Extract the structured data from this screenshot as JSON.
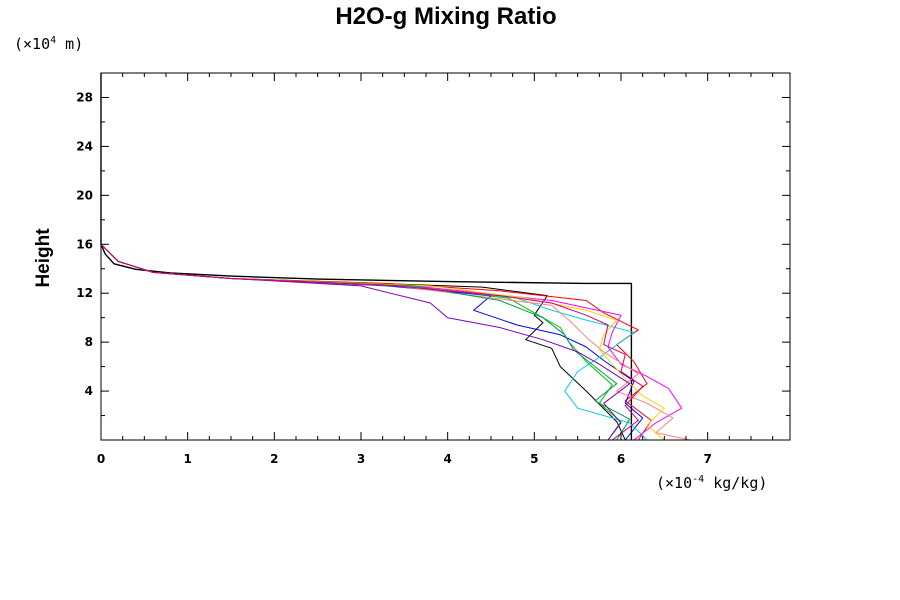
{
  "chart_data": {
    "type": "line",
    "title": "H2O-g Mixing Ratio",
    "ylabel": "Height",
    "xlabel": "",
    "x_unit": {
      "prefix": "(×10",
      "exponent": "-4",
      "suffix": " kg/kg)"
    },
    "y_unit": {
      "prefix": "(×10",
      "exponent": "4",
      "suffix": " m)"
    },
    "xlim": [
      0,
      7.95
    ],
    "ylim": [
      0,
      30
    ],
    "x_ticks": [
      0,
      1,
      2,
      3,
      4,
      5,
      6,
      7
    ],
    "y_ticks": [
      4,
      8,
      12,
      16,
      20,
      24,
      28
    ],
    "x_tick_labels": [
      "0",
      "1",
      "2",
      "3",
      "4",
      "5",
      "6",
      "7"
    ],
    "y_tick_labels": [
      "4",
      "8",
      "12",
      "16",
      "20",
      "24",
      "28"
    ],
    "grid": false,
    "legend": "none",
    "series": [
      {
        "color": "#000000",
        "x": [
          6.12,
          6.12,
          5.6,
          4.0,
          2.5,
          1.5,
          0.8,
          0.4,
          0.15,
          0.05,
          0,
          0
        ],
        "y": [
          0,
          12.8,
          12.8,
          12.95,
          13.15,
          13.4,
          13.65,
          13.95,
          14.4,
          15.2,
          16.0,
          30
        ]
      },
      {
        "color": "#000000",
        "x": [
          6.05,
          5.95,
          5.6,
          5.3,
          5.2,
          4.9,
          5.1,
          5.0,
          5.15,
          4.4,
          3.2,
          1.5,
          0.6,
          0.2,
          0
        ],
        "y": [
          0,
          1.5,
          4.0,
          6.0,
          7.5,
          8.2,
          9.6,
          10.2,
          11.8,
          12.5,
          12.8,
          13.2,
          13.7,
          14.6,
          16
        ]
      },
      {
        "color": "#ff0000",
        "x": [
          6.2,
          6.35,
          6.05,
          6.3,
          6.15,
          5.95,
          6.2,
          5.8,
          5.6,
          4.6,
          3.3,
          1.5,
          0.6,
          0.2,
          0
        ],
        "y": [
          0,
          1.6,
          3.2,
          4.6,
          6.4,
          7.8,
          9.0,
          10.4,
          11.4,
          12.2,
          12.8,
          13.2,
          13.7,
          14.6,
          16
        ]
      },
      {
        "color": "#00c000",
        "x": [
          5.85,
          6.0,
          5.75,
          5.9,
          5.6,
          5.4,
          5.3,
          5.0,
          4.7,
          3.5,
          1.5,
          0.6,
          0.2,
          0
        ],
        "y": [
          0,
          1.5,
          3.0,
          4.5,
          6.4,
          8.0,
          9.2,
          10.4,
          11.6,
          12.6,
          13.2,
          13.7,
          14.6,
          16
        ]
      },
      {
        "color": "#0000ff",
        "x": [
          6.05,
          6.25,
          6.05,
          6.15,
          5.8,
          5.6,
          5.3,
          4.8,
          4.3,
          4.5,
          3.3,
          1.5,
          0.6,
          0.2,
          0
        ],
        "y": [
          0,
          1.8,
          3.0,
          4.8,
          6.5,
          7.6,
          8.6,
          9.4,
          10.6,
          11.8,
          12.6,
          13.2,
          13.7,
          14.6,
          16
        ]
      },
      {
        "color": "#00d0e0",
        "x": [
          6.3,
          6.1,
          5.5,
          5.35,
          5.5,
          5.8,
          6.15,
          5.6,
          5.2,
          4.8,
          3.5,
          1.5,
          0.6,
          0.2,
          0
        ],
        "y": [
          0,
          1.4,
          2.6,
          4.0,
          5.6,
          7.0,
          8.8,
          9.8,
          10.6,
          11.6,
          12.6,
          13.2,
          13.7,
          14.6,
          16
        ]
      },
      {
        "color": "#ff00ff",
        "x": [
          6.15,
          6.4,
          6.7,
          6.55,
          6.3,
          6.0,
          5.85,
          5.9,
          6.0,
          5.2,
          3.6,
          1.5,
          0.6,
          0.2,
          0
        ],
        "y": [
          0,
          1.4,
          2.6,
          4.2,
          5.2,
          6.2,
          7.6,
          8.8,
          10.2,
          11.4,
          12.6,
          13.2,
          13.7,
          14.6,
          16
        ]
      },
      {
        "color": "#ff8080",
        "x": [
          6.8,
          6.4,
          6.6,
          6.3,
          5.95,
          6.2,
          5.8,
          5.6,
          5.4,
          5.2,
          3.4,
          1.5,
          0.6,
          0.2,
          0
        ],
        "y": [
          0,
          0.6,
          1.8,
          3.0,
          4.0,
          5.4,
          7.2,
          8.4,
          9.8,
          11.0,
          12.6,
          13.2,
          13.7,
          14.6,
          16
        ]
      },
      {
        "color": "#ffd000",
        "x": [
          6.5,
          6.3,
          6.5,
          6.25,
          6.05,
          5.9,
          5.75,
          5.8,
          5.95,
          5.6,
          4.9,
          3.8,
          1.5,
          0.6,
          0.2,
          0
        ],
        "y": [
          0,
          1.2,
          2.6,
          3.6,
          5.0,
          6.2,
          7.4,
          8.6,
          9.8,
          10.6,
          11.6,
          12.6,
          13.2,
          13.7,
          14.6,
          16
        ]
      },
      {
        "color": "#00a050",
        "x": [
          5.95,
          6.1,
          5.7,
          5.95,
          5.7,
          5.45,
          5.35,
          5.1,
          4.6,
          3.6,
          1.5,
          0.6,
          0.2,
          0
        ],
        "y": [
          0,
          1.7,
          3.2,
          4.6,
          6.0,
          7.4,
          8.6,
          10.0,
          11.4,
          12.6,
          13.2,
          13.7,
          14.6,
          16
        ]
      },
      {
        "color": "#8000c0",
        "x": [
          5.85,
          6.0,
          5.8,
          6.1,
          5.75,
          5.5,
          5.1,
          4.6,
          4.0,
          3.8,
          3.0,
          1.5,
          0.6,
          0.2,
          0
        ],
        "y": [
          0,
          1.4,
          3.0,
          4.6,
          6.2,
          7.2,
          8.2,
          9.2,
          10.0,
          11.2,
          12.6,
          13.2,
          13.7,
          14.6,
          16
        ]
      },
      {
        "color": "#d00070",
        "x": [
          5.9,
          6.2,
          6.05,
          6.25,
          6.0,
          6.05,
          5.8,
          5.85,
          5.6,
          5.2,
          4.6,
          3.4,
          1.5,
          0.6,
          0.2,
          0
        ],
        "y": [
          0,
          1.6,
          2.8,
          4.4,
          5.6,
          7.0,
          7.8,
          9.4,
          10.2,
          11.2,
          11.8,
          12.6,
          13.2,
          13.7,
          14.6,
          16
        ]
      }
    ]
  }
}
